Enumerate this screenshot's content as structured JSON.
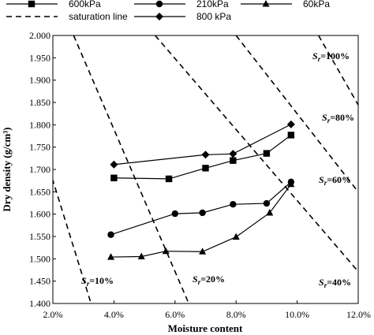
{
  "chart_data": {
    "type": "line",
    "xlabel": "Moisture content",
    "ylabel": "Dry density (g/cm³)",
    "xlim": [
      0.02,
      0.12
    ],
    "ylim": [
      1.4,
      2.0
    ],
    "xticks": [
      "2.0%",
      "4.0%",
      "6.0%",
      "8.0%",
      "10.0%",
      "12.0%"
    ],
    "yticks": [
      "1.400",
      "1.450",
      "1.500",
      "1.550",
      "1.600",
      "1.650",
      "1.700",
      "1.750",
      "1.800",
      "1.850",
      "1.900",
      "1.950",
      "2.000"
    ],
    "legend_position": "top",
    "grid": false,
    "series": [
      {
        "name": "600kPa",
        "marker": "square",
        "x": [
          0.04,
          0.058,
          0.07,
          0.079,
          0.09,
          0.098
        ],
        "y": [
          1.681,
          1.679,
          1.703,
          1.72,
          1.736,
          1.777
        ]
      },
      {
        "name": "210kPa",
        "marker": "circle",
        "x": [
          0.039,
          0.06,
          0.069,
          0.079,
          0.09,
          0.098
        ],
        "y": [
          1.554,
          1.601,
          1.603,
          1.622,
          1.624,
          1.672
        ]
      },
      {
        "name": "60kPa",
        "marker": "triangle",
        "x": [
          0.039,
          0.049,
          0.057,
          0.069,
          0.08,
          0.091,
          0.098
        ],
        "y": [
          1.504,
          1.505,
          1.517,
          1.516,
          1.549,
          1.603,
          1.667
        ]
      },
      {
        "name": "800 kPa",
        "marker": "diamond",
        "x": [
          0.04,
          0.07,
          0.079,
          0.098
        ],
        "y": [
          1.711,
          1.733,
          1.735,
          1.801
        ]
      }
    ],
    "saturation_lines": {
      "legend_label": "saturation line",
      "lines": [
        {
          "sr": 0.1,
          "label_prefix": "S",
          "label_sub": "r",
          "label_suffix": "=10%",
          "x": [
            0.0198,
            0.0325
          ],
          "y": [
            1.68,
            1.4
          ]
        },
        {
          "sr": 0.2,
          "label_prefix": "S",
          "label_sub": "r",
          "label_suffix": "=20%",
          "x": [
            0.0268,
            0.0645
          ],
          "y": [
            2.0,
            1.4
          ]
        },
        {
          "sr": 0.4,
          "label_prefix": "S",
          "label_sub": "r",
          "label_suffix": "=40%",
          "x": [
            0.0535,
            0.129
          ],
          "y": [
            2.0,
            1.4
          ]
        },
        {
          "sr": 0.6,
          "label_prefix": "S",
          "label_sub": "r",
          "label_suffix": "=60%",
          "x": [
            0.08,
            0.1194
          ],
          "y": [
            2.0,
            1.655
          ]
        },
        {
          "sr": 0.8,
          "label_prefix": "S",
          "label_sub": "r",
          "label_suffix": "=80%",
          "x": [
            0.107,
            0.1202
          ],
          "y": [
            2.0,
            1.842
          ]
        },
        {
          "sr": 1.0,
          "label_prefix": "S",
          "label_sub": "r",
          "label_suffix": "=100%",
          "x": [
            0.1338,
            0.1202
          ],
          "y": [
            2.0,
            1.965
          ]
        }
      ]
    }
  }
}
